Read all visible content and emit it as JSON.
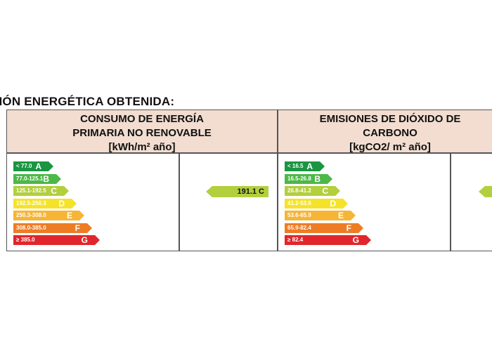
{
  "section_title": "CIÓN ENERGÉTICA OBTENIDA:",
  "energy": {
    "header_lines": [
      "CONSUMO DE ENERGÍA",
      "PRIMARIA NO RENOVABLE",
      "[kWh/m² año]"
    ],
    "bands": [
      {
        "range": "< 77.0",
        "letter": "A",
        "color": "#1a9641"
      },
      {
        "range": "77.0-125.1",
        "letter": "B",
        "color": "#4db848"
      },
      {
        "range": "125.1-192.5",
        "letter": "C",
        "color": "#b2cf3e"
      },
      {
        "range": "192.5-250.3",
        "letter": "D",
        "color": "#f4e32a"
      },
      {
        "range": "250.3-308.0",
        "letter": "E",
        "color": "#f6b536"
      },
      {
        "range": "308.0-385.0",
        "letter": "F",
        "color": "#ee7c25"
      },
      {
        "range": "≥ 385.0",
        "letter": "G",
        "color": "#e0262c"
      }
    ],
    "rating": {
      "value": "191.1 C",
      "color": "#b2cf3e"
    }
  },
  "emissions": {
    "header_lines": [
      "EMISIONES DE DIÓXIDO DE",
      "CARBONO",
      "[kgCO2/ m² año]"
    ],
    "bands": [
      {
        "range": "< 16.5",
        "letter": "A",
        "color": "#1a9641"
      },
      {
        "range": "16.5-26.8",
        "letter": "B",
        "color": "#4db848"
      },
      {
        "range": "26.8-41.2",
        "letter": "C",
        "color": "#b2cf3e"
      },
      {
        "range": "41.2-53.6",
        "letter": "D",
        "color": "#f4e32a"
      },
      {
        "range": "53.6-65.9",
        "letter": "E",
        "color": "#f6b536"
      },
      {
        "range": "65.9-82.4",
        "letter": "F",
        "color": "#ee7c25"
      },
      {
        "range": "≥ 82.4",
        "letter": "G",
        "color": "#e0262c"
      }
    ],
    "rating": {
      "value": "",
      "color": "#b2cf3e"
    }
  }
}
